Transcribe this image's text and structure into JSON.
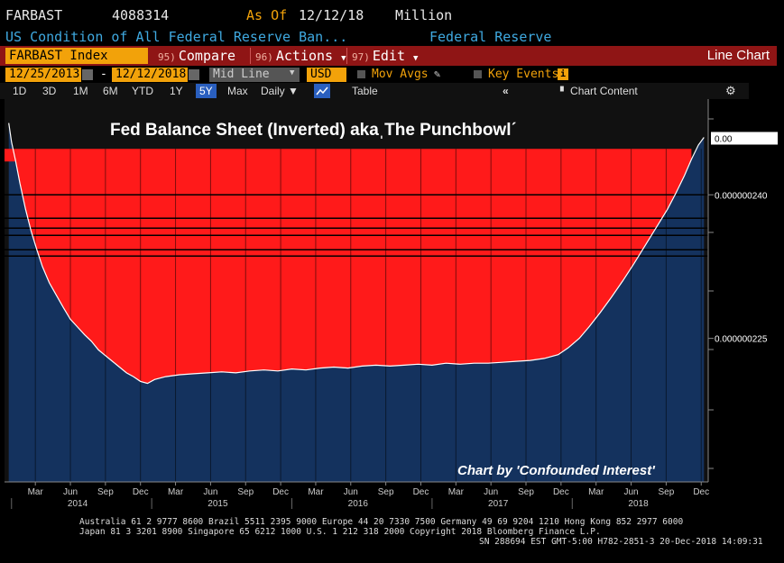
{
  "header": {
    "ticker": "FARBAST",
    "value": "4088314",
    "as_of_label": "As Of",
    "as_of_date": "12/12/18",
    "units": "Million",
    "description": "US Condition of All Federal Reserve Ban...",
    "source": "Federal Reserve"
  },
  "toolbar": {
    "security": "FARBAST Index",
    "compare_num": "95)",
    "compare_label": "Compare",
    "actions_num": "96)",
    "actions_label": "Actions",
    "edit_num": "97)",
    "edit_label": "Edit",
    "chart_type": "Line Chart"
  },
  "controls": {
    "start_date": "12/25/2013",
    "range_sep": "-",
    "end_date": "12/12/2018",
    "price_type": "Mid Line",
    "currency": "USD",
    "mov_avgs": "Mov Avgs",
    "key_events": "Key Events"
  },
  "periods": {
    "items": [
      "1D",
      "3D",
      "1M",
      "6M",
      "YTD",
      "1Y",
      "5Y",
      "Max"
    ],
    "selected": "5Y",
    "frequency": "Daily",
    "table": "Table",
    "chart_content": "Chart Content"
  },
  "footer": {
    "line1": "Australia 61 2 9777 8600 Brazil 5511 2395 9000 Europe 44 20 7330 7500 Germany 49 69 9204 1210 Hong Kong 852 2977 6000",
    "line2": "Japan 81 3 3201 8900        Singapore 65 6212 1000        U.S. 1 212 318 2000          Copyright 2018 Bloomberg Finance L.P.",
    "line3": "SN 288694 EST  GMT-5:00 H782-2851-3 20-Dec-2018 14:09:31"
  },
  "colors": {
    "background": "#000000",
    "plot_bg_top": "#0b1c38",
    "plot_bg_bottom": "#1e3a66",
    "area_fill": "#14325e",
    "punchbowl_red": "#ff1a1a",
    "accent_orange": "#f2a20a",
    "accent_blue": "#3fa9e0",
    "bar_red": "#8f1515"
  },
  "chart_data": {
    "type": "area",
    "title": "Fed Balance Sheet (Inverted) akaˌThe Punchbowlˊ",
    "watermark": "Chart by 'Confounded Interest'",
    "xlabel": "",
    "ylabel": "",
    "last_value_label": "0.00",
    "y_tick_labels": [
      {
        "value": 2.4e-07,
        "label": "0.000000240"
      },
      {
        "value": 2.25e-07,
        "label": "0.000000225"
      }
    ],
    "ylim": [
      2.1e-07,
      2.5e-07
    ],
    "xlim": [
      2013.95,
      2018.97
    ],
    "x_ticks": [
      {
        "x": 2014.17,
        "label": "Mar"
      },
      {
        "x": 2014.42,
        "label": "Jun",
        "year": "2014"
      },
      {
        "x": 2014.67,
        "label": "Sep"
      },
      {
        "x": 2014.92,
        "label": "Dec"
      },
      {
        "x": 2015.17,
        "label": "Mar"
      },
      {
        "x": 2015.42,
        "label": "Jun",
        "year": "2015"
      },
      {
        "x": 2015.67,
        "label": "Sep"
      },
      {
        "x": 2015.92,
        "label": "Dec"
      },
      {
        "x": 2016.17,
        "label": "Mar"
      },
      {
        "x": 2016.42,
        "label": "Jun",
        "year": "2016"
      },
      {
        "x": 2016.67,
        "label": "Sep"
      },
      {
        "x": 2016.92,
        "label": "Dec"
      },
      {
        "x": 2017.17,
        "label": "Mar"
      },
      {
        "x": 2017.42,
        "label": "Jun",
        "year": "2017"
      },
      {
        "x": 2017.67,
        "label": "Sep"
      },
      {
        "x": 2017.92,
        "label": "Dec"
      },
      {
        "x": 2018.17,
        "label": "Mar"
      },
      {
        "x": 2018.42,
        "label": "Jun",
        "year": "2018"
      },
      {
        "x": 2018.67,
        "label": "Sep"
      },
      {
        "x": 2018.92,
        "label": "Dec"
      }
    ],
    "x": [
      2013.98,
      2014.0,
      2014.03,
      2014.06,
      2014.1,
      2014.14,
      2014.18,
      2014.22,
      2014.27,
      2014.32,
      2014.37,
      2014.42,
      2014.47,
      2014.52,
      2014.57,
      2014.62,
      2014.67,
      2014.72,
      2014.77,
      2014.82,
      2014.87,
      2014.92,
      2014.97,
      2015.02,
      2015.1,
      2015.2,
      2015.3,
      2015.4,
      2015.5,
      2015.6,
      2015.7,
      2015.8,
      2015.9,
      2016.0,
      2016.1,
      2016.2,
      2016.3,
      2016.4,
      2016.5,
      2016.6,
      2016.7,
      2016.8,
      2016.9,
      2017.0,
      2017.1,
      2017.2,
      2017.3,
      2017.4,
      2017.5,
      2017.6,
      2017.7,
      2017.8,
      2017.9,
      2017.97,
      2018.05,
      2018.12,
      2018.2,
      2018.28,
      2018.36,
      2018.44,
      2018.52,
      2018.6,
      2018.68,
      2018.74,
      2018.8,
      2018.85,
      2018.9,
      2018.94
    ],
    "y": [
      2.475e-07,
      2.455e-07,
      2.435e-07,
      2.412e-07,
      2.385e-07,
      2.362e-07,
      2.343e-07,
      2.325e-07,
      2.308e-07,
      2.295e-07,
      2.282e-07,
      2.27e-07,
      2.262e-07,
      2.254e-07,
      2.247e-07,
      2.238e-07,
      2.232e-07,
      2.226e-07,
      2.22e-07,
      2.214e-07,
      2.21e-07,
      2.205e-07,
      2.203e-07,
      2.207e-07,
      2.21e-07,
      2.212e-07,
      2.213e-07,
      2.214e-07,
      2.215e-07,
      2.214e-07,
      2.216e-07,
      2.217e-07,
      2.216e-07,
      2.218e-07,
      2.217e-07,
      2.219e-07,
      2.22e-07,
      2.219e-07,
      2.221e-07,
      2.222e-07,
      2.221e-07,
      2.222e-07,
      2.223e-07,
      2.222e-07,
      2.224e-07,
      2.223e-07,
      2.224e-07,
      2.224e-07,
      2.225e-07,
      2.226e-07,
      2.227e-07,
      2.229e-07,
      2.233e-07,
      2.24e-07,
      2.25e-07,
      2.262e-07,
      2.277e-07,
      2.293e-07,
      2.31e-07,
      2.328e-07,
      2.347e-07,
      2.366e-07,
      2.385e-07,
      2.402e-07,
      2.42e-07,
      2.437e-07,
      2.452e-07,
      2.46e-07
    ],
    "punchbowl_top": 2.448e-07,
    "grid": true,
    "legend": "none"
  }
}
